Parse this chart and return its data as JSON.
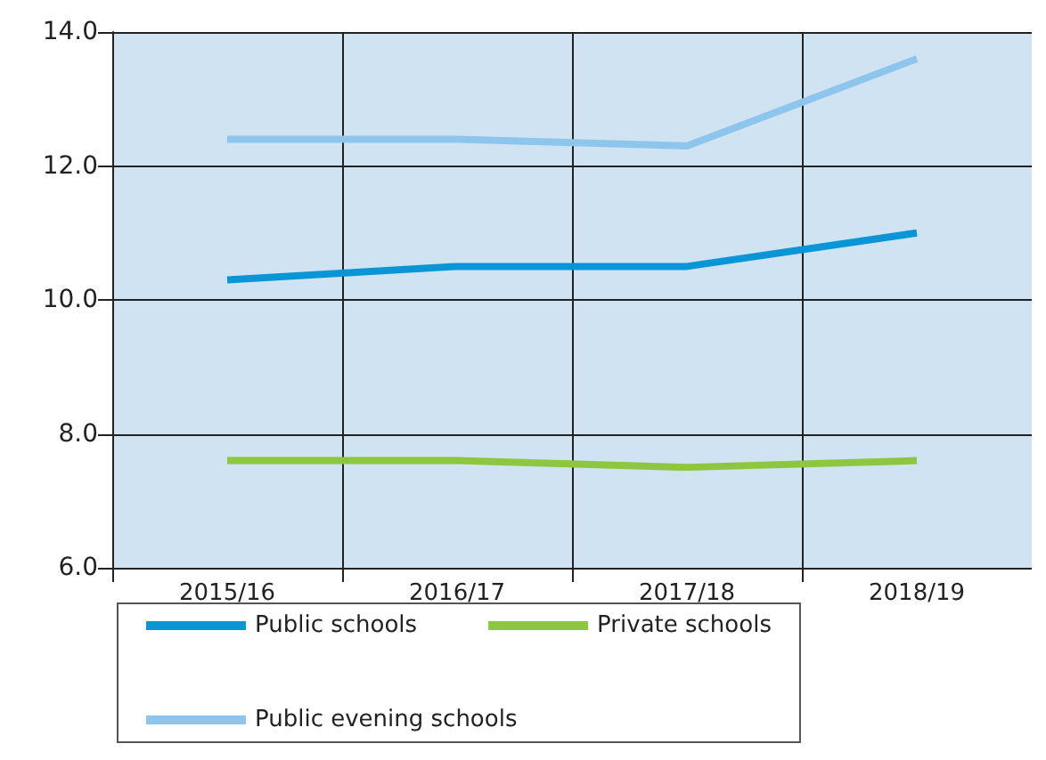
{
  "chart_data": {
    "type": "line",
    "categories": [
      "2015/16",
      "2016/17",
      "2017/18",
      "2018/19"
    ],
    "series": [
      {
        "name": "Public schools",
        "color": "#0a96d6",
        "values": [
          10.3,
          10.5,
          10.5,
          11.0
        ]
      },
      {
        "name": "Private schools",
        "color": "#8dc63f",
        "values": [
          7.6,
          7.6,
          7.5,
          7.6
        ]
      },
      {
        "name": "Public evening schools",
        "color": "#8ec5ec",
        "values": [
          12.4,
          12.4,
          12.3,
          13.6
        ]
      }
    ],
    "ylim": [
      6,
      14
    ],
    "yticks": [
      {
        "value": 6,
        "label": "6.0"
      },
      {
        "value": 8,
        "label": "8.0"
      },
      {
        "value": 10,
        "label": "10.0"
      },
      {
        "value": 12,
        "label": "12.0"
      },
      {
        "value": 14,
        "label": "14.0"
      }
    ],
    "grid": true,
    "legend": "bottom",
    "marker": "none",
    "line_style": "solid"
  }
}
